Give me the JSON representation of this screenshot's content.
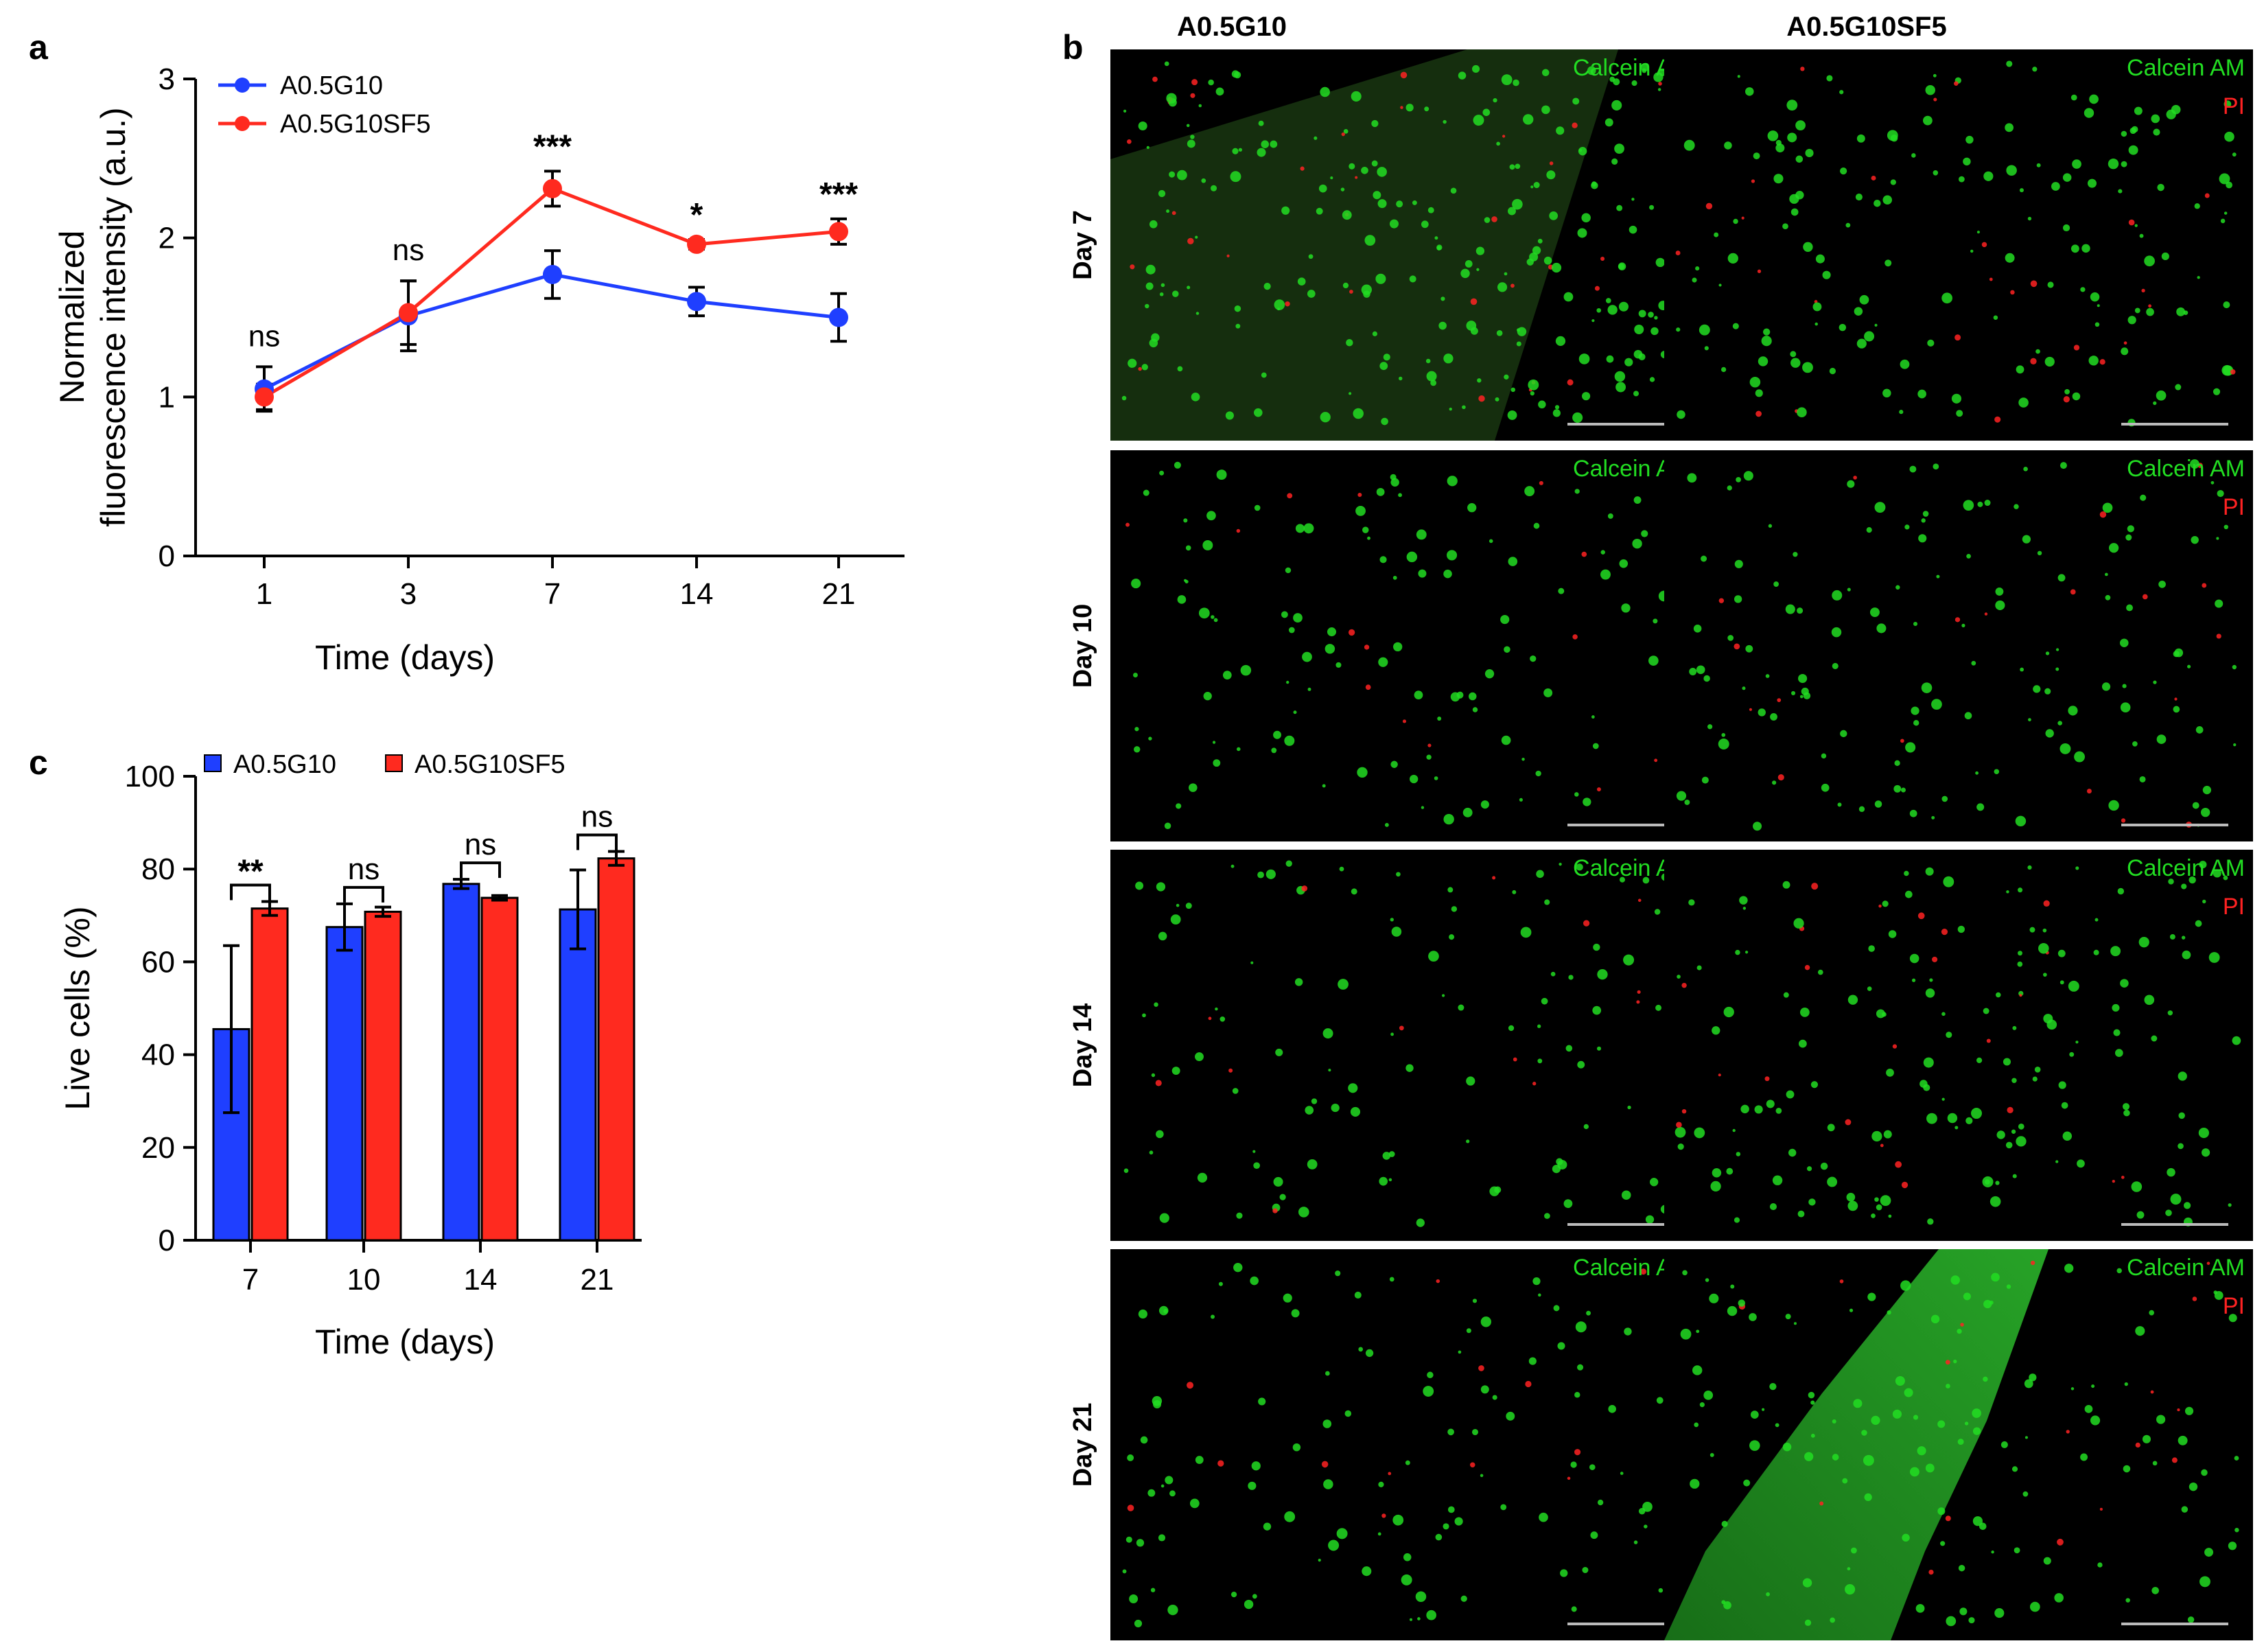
{
  "panels": {
    "a_letter": "a",
    "b_letter": "b",
    "c_letter": "c"
  },
  "chart_data": [
    {
      "type": "line",
      "panel": "a",
      "categories": [
        "1",
        "3",
        "7",
        "14",
        "21"
      ],
      "series": [
        {
          "name": "A0.5G10",
          "color": "#1f3fff",
          "values": [
            1.05,
            1.51,
            1.77,
            1.6,
            1.5
          ],
          "errors": [
            0.14,
            0.22,
            0.15,
            0.09,
            0.15
          ]
        },
        {
          "name": "A0.5G10SF5",
          "color": "#ff2a1f",
          "values": [
            1.0,
            1.53,
            2.31,
            1.96,
            2.04
          ],
          "errors": [
            0.08,
            0.2,
            0.11,
            0.03,
            0.08
          ]
        }
      ],
      "significance": [
        "ns",
        "ns",
        "***",
        "*",
        "***"
      ],
      "xlabel": "Time (days)",
      "ylabel_line1": "Normalized",
      "ylabel_line2": "fluorescence intensity (a.u.)",
      "ylim": [
        0,
        3
      ],
      "yticks": [
        "0",
        "1",
        "2",
        "3"
      ],
      "legend_position": "top-left",
      "grid": false
    },
    {
      "type": "bar",
      "panel": "c",
      "categories": [
        "7",
        "10",
        "14",
        "21"
      ],
      "series": [
        {
          "name": "A0.5G10",
          "color": "#1f3fff",
          "values": [
            45.5,
            67.5,
            76.8,
            71.3
          ],
          "errors": [
            18,
            5,
            1,
            8.5
          ]
        },
        {
          "name": "A0.5G10SF5",
          "color": "#ff2a1f",
          "values": [
            71.5,
            70.8,
            73.8,
            82.3
          ],
          "errors": [
            1.5,
            1,
            0.5,
            1.5
          ]
        }
      ],
      "significance": [
        "**",
        "ns",
        "ns",
        "ns"
      ],
      "xlabel": "Time (days)",
      "ylabel": "Live cells (%)",
      "ylim": [
        0,
        100
      ],
      "yticks": [
        "0",
        "20",
        "40",
        "60",
        "80",
        "100"
      ],
      "legend_position": "top",
      "grid": false
    }
  ],
  "micrographs": {
    "columns": [
      "A0.5G10",
      "A0.5G10SF5"
    ],
    "rows": [
      "Day 7",
      "Day 10",
      "Day 14",
      "Day 21"
    ],
    "stain_live": "Calcein AM",
    "stain_dead": "PI",
    "live_color": "#22dd22",
    "dead_color": "#ff2222"
  }
}
